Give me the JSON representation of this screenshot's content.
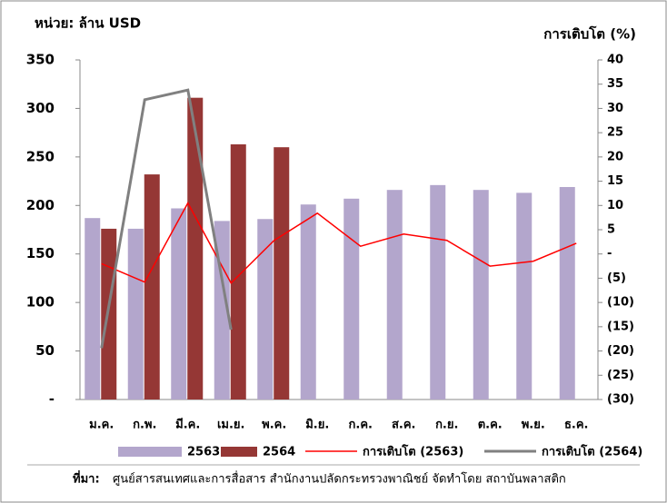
{
  "chart_data": {
    "type": "bar_line",
    "y_label": "หน่วย: ล้าน USD",
    "y2_label": "การเติบโต (%)",
    "categories": [
      "ม.ค.",
      "ก.พ.",
      "มี.ค.",
      "เม.ย.",
      "พ.ค.",
      "มิ.ย.",
      "ก.ค.",
      "ส.ค.",
      "ก.ย.",
      "ต.ค.",
      "พ.ย.",
      "ธ.ค."
    ],
    "series": [
      {
        "name": "2563",
        "type": "bar",
        "color": "#b3a6cc",
        "values": [
          187,
          176,
          197,
          184,
          186,
          201,
          207,
          216,
          221,
          216,
          213,
          219
        ]
      },
      {
        "name": "2564",
        "type": "bar",
        "color": "#953735",
        "values": [
          176,
          232,
          311,
          263,
          260,
          null,
          null,
          null,
          null,
          null,
          null,
          null
        ]
      },
      {
        "name": "การเติบโต (2563)",
        "type": "line",
        "axis": "y2",
        "color": "#ff0000",
        "values": [
          -2,
          -5.8,
          10.5,
          -6,
          2.8,
          8.4,
          1.6,
          4.1,
          2.8,
          -2.5,
          -1.5,
          2.2
        ]
      },
      {
        "name": "การเติบโต (2564)",
        "type": "line",
        "axis": "y2",
        "color": "#808080",
        "values": [
          -19.4,
          31.8,
          33.8,
          -15.6,
          null,
          null,
          null,
          null,
          null,
          null,
          null,
          null
        ]
      }
    ],
    "ylim": [
      0,
      350
    ],
    "yticks": [
      {
        "value": 0,
        "label": "-"
      },
      50,
      100,
      150,
      200,
      250,
      300,
      350
    ],
    "y2lim": [
      -30,
      40
    ],
    "y2ticks": [
      {
        "value": -30,
        "label": "(30)"
      },
      {
        "value": -25,
        "label": "(25)"
      },
      {
        "value": -20,
        "label": "(20)"
      },
      {
        "value": -15,
        "label": "(15)"
      },
      {
        "value": -10,
        "label": "(10)"
      },
      {
        "value": -5,
        "label": "(5)"
      },
      {
        "value": 0,
        "label": "-"
      },
      5,
      10,
      15,
      20,
      25,
      30,
      35,
      40
    ],
    "source_label": "ที่มา:",
    "source": "ศูนย์สารสนเทศและการสื่อสาร  สำนักงานปลัดกระทรวงพาณิชย์   จัดทำโดย  สถาบันพลาสติก"
  }
}
